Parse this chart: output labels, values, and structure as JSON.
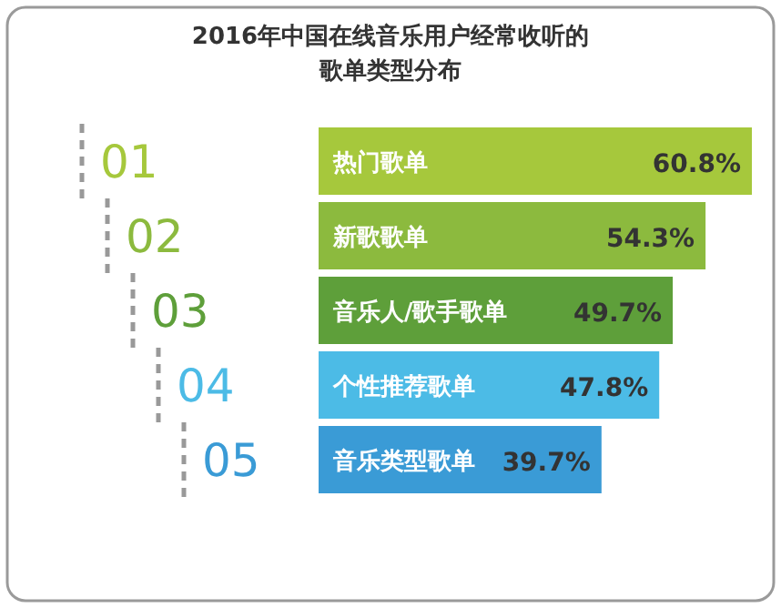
{
  "chart_data": {
    "type": "bar",
    "orientation": "horizontal",
    "title": "2016年中国在线音乐用户经常收听的歌单类型分布",
    "categories": [
      "热门歌单",
      "新歌歌单",
      "音乐人/歌手歌单",
      "个性推荐歌单",
      "音乐类型歌单"
    ],
    "values": [
      60.8,
      54.3,
      49.7,
      47.8,
      39.7
    ],
    "value_labels": [
      "60.8%",
      "54.3%",
      "49.7%",
      "47.8%",
      "39.7%"
    ],
    "colors": [
      "#a6c83c",
      "#8cba3e",
      "#5e9f3a",
      "#4cbbe6",
      "#3a9bd6"
    ],
    "annotations": [
      "01",
      "02",
      "03",
      "04",
      "05"
    ]
  }
}
